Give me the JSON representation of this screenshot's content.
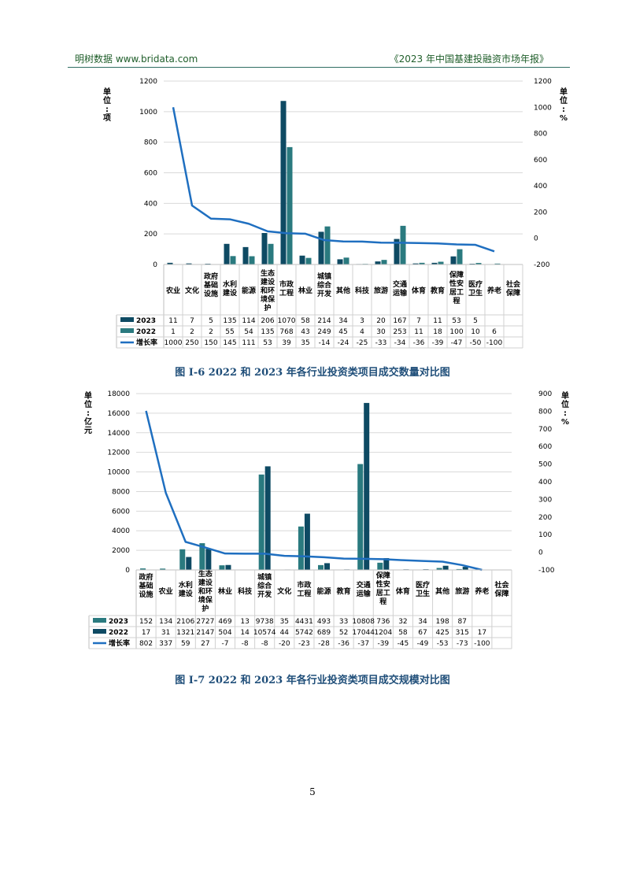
{
  "header": {
    "left": "明树数据 www.bridata.com",
    "right": "《2023 年中国基建投融资市场年报》"
  },
  "colors": {
    "dark": "#0e4a63",
    "mid": "#2a7a7f",
    "line": "#1f6fc0",
    "caption": "#1f4e79"
  },
  "page_number": "5",
  "chart_data": [
    {
      "type": "bar",
      "title": "",
      "caption": "图 I-6 2022 和 2023 年各行业投资类项目成交数量对比图",
      "left_unit": "单位：项",
      "right_unit": "单位：%",
      "ylim": [
        0,
        1200
      ],
      "y_ticks": [
        "0",
        "200",
        "400",
        "600",
        "800",
        "1000",
        "1200"
      ],
      "y2lim": [
        -200,
        1200
      ],
      "y2_ticks": [
        "-200",
        "0",
        "200",
        "400",
        "600",
        "800",
        "1000",
        "1200"
      ],
      "categories": [
        [
          "农业"
        ],
        [
          "文化"
        ],
        [
          "政府",
          "基础",
          "设施"
        ],
        [
          "水利",
          "建设"
        ],
        [
          "能源"
        ],
        [
          "生态",
          "建设",
          "和环",
          "境保",
          "护"
        ],
        [
          "市政",
          "工程"
        ],
        [
          "林业"
        ],
        [
          "城镇",
          "综合",
          "开发"
        ],
        [
          "其他"
        ],
        [
          "科技"
        ],
        [
          "旅游"
        ],
        [
          "交通",
          "运输"
        ],
        [
          "体育"
        ],
        [
          "教育"
        ],
        [
          "保障",
          "性安",
          "居工",
          "程"
        ],
        [
          "医疗",
          "卫生"
        ],
        [
          "养老"
        ],
        [
          "社会",
          "保障"
        ]
      ],
      "series": [
        {
          "name": "2023",
          "color": "#0e4a63",
          "values": [
            11,
            7,
            5,
            135,
            114,
            206,
            1070,
            58,
            214,
            34,
            3,
            20,
            167,
            7,
            11,
            53,
            5,
            null,
            null
          ],
          "labels": [
            "11",
            "7",
            "5",
            "135",
            "114",
            "206",
            "1070",
            "58",
            "214",
            "34",
            "3",
            "20",
            "167",
            "7",
            "11",
            "53",
            "5",
            "",
            ""
          ]
        },
        {
          "name": "2022",
          "color": "#2a7a7f",
          "values": [
            1,
            2,
            2,
            55,
            54,
            135,
            768,
            43,
            249,
            45,
            4,
            30,
            253,
            11,
            18,
            100,
            10,
            6,
            null
          ],
          "labels": [
            "1",
            "2",
            "2",
            "55",
            "54",
            "135",
            "768",
            "43",
            "249",
            "45",
            "4",
            "30",
            "253",
            "11",
            "18",
            "100",
            "10",
            "6",
            ""
          ]
        },
        {
          "name": "增长率",
          "color": "#1f6fc0",
          "type": "line",
          "values": [
            1000,
            250,
            150,
            145,
            111,
            53,
            39,
            35,
            -14,
            -24,
            -25,
            -33,
            -34,
            -36,
            -39,
            -47,
            -50,
            -100,
            null
          ],
          "labels": [
            "1000",
            "250",
            "150",
            "145",
            "111",
            "53",
            "39",
            "35",
            "-14",
            "-24",
            "-25",
            "-33",
            "-34",
            "-36",
            "-39",
            "-47",
            "-50",
            "-100",
            ""
          ]
        }
      ]
    },
    {
      "type": "bar",
      "title": "",
      "caption": "图 I-7 2022 和 2023 年各行业投资类项目成交规模对比图",
      "left_unit": "单位：亿元",
      "right_unit": "单位：%",
      "ylim": [
        0,
        18000
      ],
      "y_ticks": [
        "0",
        "2000",
        "4000",
        "6000",
        "8000",
        "10000",
        "12000",
        "14000",
        "16000",
        "18000"
      ],
      "y2lim": [
        -100,
        900
      ],
      "y2_ticks": [
        "-100",
        "0",
        "100",
        "200",
        "300",
        "400",
        "500",
        "600",
        "700",
        "800",
        "900"
      ],
      "categories": [
        [
          "政府",
          "基础",
          "设施"
        ],
        [
          "农业"
        ],
        [
          "水利",
          "建设"
        ],
        [
          "生态",
          "建设",
          "和环",
          "境保",
          "护"
        ],
        [
          "林业"
        ],
        [
          "科技"
        ],
        [
          "城镇",
          "综合",
          "开发"
        ],
        [
          "文化"
        ],
        [
          "市政",
          "工程"
        ],
        [
          "能源"
        ],
        [
          "教育"
        ],
        [
          "交通",
          "运输"
        ],
        [
          "保障",
          "性安",
          "居工",
          "程"
        ],
        [
          "体育"
        ],
        [
          "医疗",
          "卫生"
        ],
        [
          "其他"
        ],
        [
          "旅游"
        ],
        [
          "养老"
        ],
        [
          "社会",
          "保障"
        ]
      ],
      "series": [
        {
          "name": "2023",
          "color": "#2a7a7f",
          "values": [
            152,
            134,
            2106,
            2727,
            469,
            13,
            9738,
            35,
            4431,
            493,
            33,
            10808,
            736,
            32,
            34,
            198,
            87,
            null,
            null
          ],
          "labels": [
            "152",
            "134",
            "2106",
            "2727",
            "469",
            "13",
            "9738",
            "35",
            "4431",
            "493",
            "33",
            "10808",
            "736",
            "32",
            "34",
            "198",
            "87",
            "",
            ""
          ]
        },
        {
          "name": "2022",
          "color": "#0e4a63",
          "values": [
            17,
            31,
            1321,
            2147,
            504,
            14,
            10574,
            44,
            5742,
            689,
            52,
            17044,
            1204,
            58,
            67,
            425,
            315,
            17,
            null
          ],
          "labels": [
            "17",
            "31",
            "1321",
            "2147",
            "504",
            "14",
            "10574",
            "44",
            "5742",
            "689",
            "52",
            "17044",
            "1204",
            "58",
            "67",
            "425",
            "315",
            "17",
            ""
          ]
        },
        {
          "name": "增长率",
          "color": "#1f6fc0",
          "type": "line",
          "values": [
            802,
            337,
            59,
            27,
            -7,
            -8,
            -8,
            -20,
            -23,
            -28,
            -36,
            -37,
            -39,
            -45,
            -49,
            -53,
            -73,
            -100,
            null
          ],
          "labels": [
            "802",
            "337",
            "59",
            "27",
            "-7",
            "-8",
            "-8",
            "-20",
            "-23",
            "-28",
            "-36",
            "-37",
            "-39",
            "-45",
            "-49",
            "-53",
            "-73",
            "-100",
            ""
          ]
        }
      ]
    }
  ]
}
